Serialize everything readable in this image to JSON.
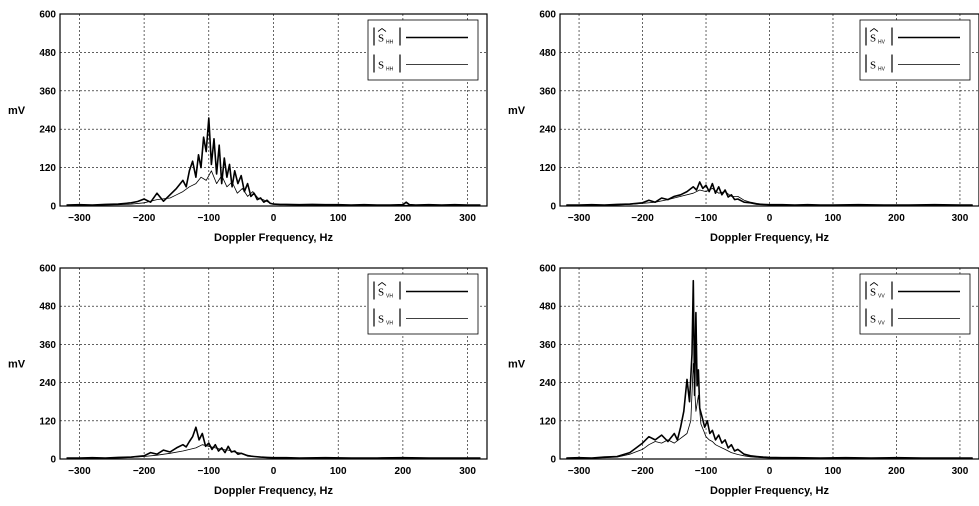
{
  "chart_data": [
    {
      "type": "line",
      "xlabel": "Doppler Frequency, Hz",
      "ylabel": "mV",
      "xlim": [
        -330,
        330
      ],
      "ylim": [
        0,
        600
      ],
      "xticks": [
        -300,
        -200,
        -100,
        0,
        100,
        200,
        300
      ],
      "yticks": [
        0,
        120,
        240,
        360,
        480,
        600
      ],
      "grid": true,
      "legend_position": "top-right",
      "series": [
        {
          "name": "|Ŝ_HH|",
          "legend_main": "S",
          "legend_sub": "HH",
          "hat": true,
          "stroke_width": 1.6,
          "x": [
            -320,
            -300,
            -280,
            -260,
            -240,
            -220,
            -210,
            -200,
            -190,
            -180,
            -170,
            -160,
            -150,
            -140,
            -135,
            -130,
            -125,
            -120,
            -116,
            -112,
            -108,
            -104,
            -100,
            -96,
            -92,
            -88,
            -84,
            -80,
            -76,
            -72,
            -68,
            -64,
            -60,
            -55,
            -50,
            -45,
            -40,
            -35,
            -30,
            -25,
            -20,
            -15,
            -10,
            -5,
            0,
            10,
            20,
            40,
            60,
            80,
            100,
            120,
            140,
            160,
            180,
            200,
            205,
            210,
            220,
            240,
            260,
            280,
            300,
            320
          ],
          "y": [
            3,
            4,
            3,
            5,
            6,
            10,
            14,
            22,
            12,
            40,
            15,
            35,
            55,
            80,
            60,
            110,
            140,
            90,
            160,
            120,
            215,
            170,
            275,
            130,
            210,
            100,
            190,
            70,
            150,
            90,
            130,
            60,
            110,
            70,
            95,
            45,
            70,
            30,
            40,
            20,
            25,
            12,
            18,
            8,
            6,
            5,
            5,
            4,
            5,
            4,
            4,
            3,
            4,
            3,
            3,
            4,
            12,
            4,
            3,
            4,
            3,
            4,
            3,
            3
          ]
        },
        {
          "name": "|S_HH|",
          "legend_main": "S",
          "legend_sub": "HH",
          "hat": false,
          "stroke_width": 0.8,
          "x": [
            -320,
            -300,
            -280,
            -260,
            -240,
            -220,
            -200,
            -180,
            -160,
            -150,
            -140,
            -130,
            -120,
            -112,
            -104,
            -96,
            -88,
            -80,
            -72,
            -64,
            -56,
            -48,
            -40,
            -32,
            -24,
            -16,
            -8,
            0,
            20,
            40,
            60,
            80,
            100,
            140,
            180,
            220,
            260,
            300,
            320
          ],
          "y": [
            2,
            3,
            2,
            3,
            4,
            6,
            10,
            20,
            25,
            35,
            45,
            60,
            70,
            90,
            80,
            110,
            70,
            95,
            60,
            75,
            40,
            55,
            30,
            45,
            25,
            20,
            12,
            6,
            4,
            3,
            3,
            2,
            3,
            2,
            3,
            2,
            3,
            2,
            2
          ]
        }
      ]
    },
    {
      "type": "line",
      "xlabel": "Doppler Frequency, Hz",
      "ylabel": "mV",
      "xlim": [
        -330,
        330
      ],
      "ylim": [
        0,
        600
      ],
      "xticks": [
        -300,
        -200,
        -100,
        0,
        100,
        200,
        300
      ],
      "yticks": [
        0,
        120,
        240,
        360,
        480,
        600
      ],
      "grid": true,
      "legend_position": "top-right",
      "series": [
        {
          "name": "|Ŝ_HV|",
          "legend_main": "S",
          "legend_sub": "HV",
          "hat": true,
          "stroke_width": 1.6,
          "x": [
            -320,
            -300,
            -280,
            -260,
            -240,
            -220,
            -200,
            -190,
            -180,
            -170,
            -160,
            -150,
            -140,
            -130,
            -120,
            -115,
            -110,
            -105,
            -100,
            -95,
            -90,
            -85,
            -80,
            -75,
            -70,
            -65,
            -60,
            -55,
            -50,
            -40,
            -30,
            -20,
            -10,
            0,
            20,
            40,
            60,
            80,
            100,
            140,
            180,
            220,
            260,
            300,
            320
          ],
          "y": [
            3,
            3,
            4,
            3,
            5,
            6,
            10,
            18,
            12,
            25,
            20,
            30,
            35,
            45,
            60,
            50,
            75,
            55,
            65,
            45,
            70,
            40,
            60,
            35,
            50,
            28,
            35,
            20,
            22,
            12,
            10,
            6,
            5,
            4,
            4,
            3,
            4,
            3,
            3,
            4,
            3,
            3,
            4,
            3,
            3
          ]
        },
        {
          "name": "|S_HV|",
          "legend_main": "S",
          "legend_sub": "HV",
          "hat": false,
          "stroke_width": 0.8,
          "x": [
            -320,
            -300,
            -280,
            -260,
            -240,
            -220,
            -200,
            -180,
            -160,
            -140,
            -120,
            -110,
            -100,
            -90,
            -80,
            -70,
            -60,
            -50,
            -40,
            -30,
            -20,
            -10,
            0,
            20,
            60,
            100,
            140,
            180,
            220,
            260,
            300,
            320
          ],
          "y": [
            2,
            2,
            3,
            2,
            3,
            5,
            8,
            12,
            20,
            30,
            40,
            50,
            45,
            55,
            40,
            45,
            30,
            30,
            18,
            12,
            8,
            5,
            4,
            3,
            3,
            2,
            3,
            2,
            3,
            2,
            2,
            2
          ]
        }
      ]
    },
    {
      "type": "line",
      "xlabel": "Doppler Frequency, Hz",
      "ylabel": "mV",
      "xlim": [
        -330,
        330
      ],
      "ylim": [
        0,
        600
      ],
      "xticks": [
        -300,
        -200,
        -100,
        0,
        100,
        200,
        300
      ],
      "yticks": [
        0,
        120,
        240,
        360,
        480,
        600
      ],
      "grid": true,
      "legend_position": "top-right",
      "series": [
        {
          "name": "|Ŝ_VH|",
          "legend_main": "S",
          "legend_sub": "VH",
          "hat": true,
          "stroke_width": 1.6,
          "x": [
            -320,
            -300,
            -280,
            -260,
            -240,
            -220,
            -200,
            -190,
            -180,
            -170,
            -160,
            -150,
            -140,
            -135,
            -130,
            -125,
            -120,
            -115,
            -110,
            -105,
            -100,
            -95,
            -90,
            -85,
            -80,
            -75,
            -70,
            -65,
            -60,
            -55,
            -50,
            -40,
            -30,
            -20,
            -10,
            0,
            20,
            40,
            80,
            120,
            160,
            200,
            240,
            280,
            320
          ],
          "y": [
            3,
            3,
            4,
            3,
            5,
            6,
            10,
            20,
            15,
            28,
            22,
            35,
            45,
            38,
            55,
            70,
            100,
            60,
            80,
            40,
            50,
            30,
            45,
            25,
            35,
            20,
            40,
            22,
            25,
            15,
            18,
            10,
            8,
            6,
            5,
            4,
            4,
            3,
            4,
            3,
            3,
            4,
            3,
            3,
            3
          ]
        },
        {
          "name": "|S_VH|",
          "legend_main": "S",
          "legend_sub": "VH",
          "hat": false,
          "stroke_width": 0.8,
          "x": [
            -320,
            -300,
            -280,
            -260,
            -240,
            -220,
            -200,
            -180,
            -160,
            -140,
            -120,
            -110,
            -100,
            -90,
            -80,
            -70,
            -60,
            -50,
            -40,
            -30,
            -20,
            -10,
            0,
            20,
            60,
            100,
            140,
            180,
            220,
            260,
            300,
            320
          ],
          "y": [
            2,
            2,
            3,
            2,
            3,
            5,
            8,
            12,
            18,
            25,
            35,
            45,
            40,
            35,
            30,
            28,
            22,
            18,
            12,
            8,
            6,
            4,
            3,
            3,
            2,
            3,
            2,
            3,
            2,
            3,
            2,
            2
          ]
        }
      ]
    },
    {
      "type": "line",
      "xlabel": "Doppler Frequency, Hz",
      "ylabel": "mV",
      "xlim": [
        -330,
        330
      ],
      "ylim": [
        0,
        600
      ],
      "xticks": [
        -300,
        -200,
        -100,
        0,
        100,
        200,
        300
      ],
      "yticks": [
        0,
        120,
        240,
        360,
        480,
        600
      ],
      "grid": true,
      "legend_position": "top-right",
      "series": [
        {
          "name": "|Ŝ_VV|",
          "legend_main": "S",
          "legend_sub": "VV",
          "hat": true,
          "stroke_width": 1.6,
          "x": [
            -320,
            -300,
            -280,
            -260,
            -240,
            -220,
            -210,
            -200,
            -190,
            -180,
            -170,
            -160,
            -150,
            -145,
            -140,
            -135,
            -130,
            -126,
            -122,
            -120,
            -118,
            -116,
            -114,
            -112,
            -110,
            -106,
            -102,
            -98,
            -94,
            -90,
            -85,
            -80,
            -75,
            -70,
            -65,
            -60,
            -55,
            -50,
            -40,
            -30,
            -20,
            -10,
            0,
            20,
            40,
            80,
            120,
            160,
            200,
            240,
            280,
            320
          ],
          "y": [
            3,
            4,
            3,
            6,
            8,
            20,
            35,
            50,
            70,
            60,
            75,
            55,
            80,
            60,
            100,
            150,
            250,
            180,
            330,
            560,
            200,
            460,
            230,
            280,
            160,
            130,
            100,
            120,
            80,
            90,
            60,
            75,
            50,
            60,
            35,
            45,
            25,
            30,
            15,
            10,
            8,
            6,
            5,
            4,
            4,
            3,
            4,
            3,
            4,
            3,
            3,
            3
          ]
        },
        {
          "name": "|S_VV|",
          "legend_main": "S",
          "legend_sub": "VV",
          "hat": false,
          "stroke_width": 0.8,
          "x": [
            -320,
            -300,
            -280,
            -260,
            -240,
            -220,
            -200,
            -190,
            -180,
            -170,
            -160,
            -150,
            -140,
            -130,
            -124,
            -120,
            -116,
            -112,
            -108,
            -104,
            -100,
            -95,
            -90,
            -85,
            -80,
            -75,
            -70,
            -65,
            -60,
            -50,
            -40,
            -30,
            -20,
            -10,
            0,
            20,
            60,
            100,
            140,
            180,
            220,
            260,
            300,
            320
          ],
          "y": [
            2,
            3,
            3,
            4,
            6,
            15,
            30,
            45,
            55,
            50,
            60,
            50,
            65,
            80,
            120,
            300,
            150,
            200,
            110,
            90,
            70,
            60,
            55,
            45,
            40,
            35,
            30,
            25,
            20,
            14,
            10,
            7,
            5,
            4,
            3,
            3,
            2,
            3,
            2,
            3,
            2,
            3,
            2,
            2
          ]
        }
      ]
    }
  ]
}
